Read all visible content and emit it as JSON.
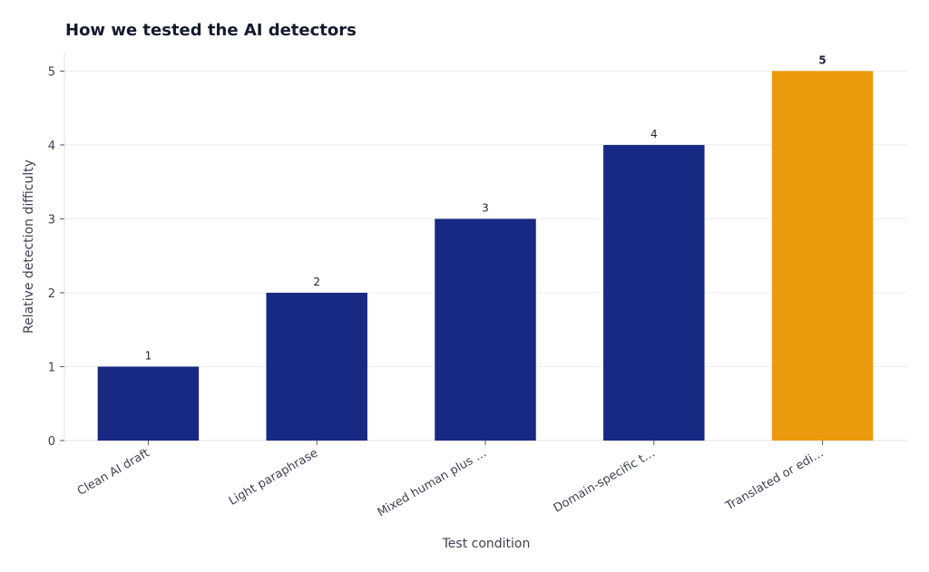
{
  "chart_data": {
    "type": "bar",
    "title": "How we tested the AI detectors",
    "xlabel": "Test condition",
    "ylabel": "Relative detection difficulty",
    "categories": [
      "Clean AI draft",
      "Light paraphrase",
      "Mixed human plus …",
      "Domain-specific t…",
      "Translated or edi…"
    ],
    "values": [
      1,
      2,
      3,
      4,
      5
    ],
    "value_labels": [
      "1",
      "2",
      "3",
      "4",
      "5"
    ],
    "y_ticks": [
      0,
      1,
      2,
      3,
      4,
      5
    ],
    "ylim": [
      0,
      5.25
    ],
    "grid": "horizontal",
    "colors": {
      "default": "#172983",
      "highlight": "#ea9a0c",
      "highlight_label": "#ea9a0c"
    },
    "highlight_index": 4
  }
}
